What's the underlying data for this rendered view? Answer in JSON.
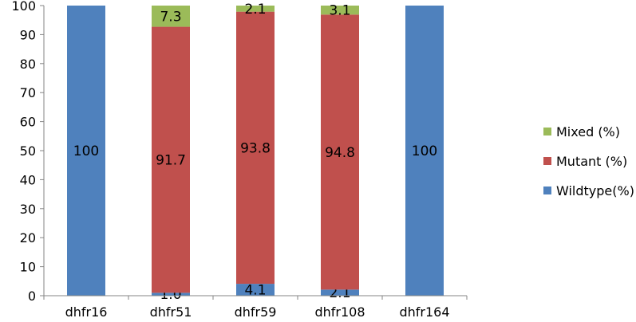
{
  "chart_data": {
    "type": "bar",
    "stacked": true,
    "categories": [
      "dhfr16",
      "dhfr51",
      "dhfr59",
      "dhfr108",
      "dhfr164"
    ],
    "series": [
      {
        "name": "Wildtype(%)",
        "color": "#4F81BD",
        "values": [
          100,
          1.0,
          4.1,
          2.1,
          100
        ],
        "labels": [
          "100",
          "1.0",
          "4.1",
          "2.1",
          "100"
        ]
      },
      {
        "name": "Mutant (%)",
        "color": "#C0504D",
        "values": [
          0,
          91.7,
          93.8,
          94.8,
          0
        ],
        "labels": [
          "",
          "91.7",
          "93.8",
          "94.8",
          ""
        ]
      },
      {
        "name": "Mixed (%)",
        "color": "#9BBB59",
        "values": [
          0,
          7.3,
          2.1,
          3.1,
          0
        ],
        "labels": [
          "",
          "7.3",
          "2.1",
          "3.1",
          ""
        ]
      }
    ],
    "title": "",
    "xlabel": "",
    "ylabel": "",
    "ylim": [
      0,
      100
    ],
    "yticks": [
      0,
      10,
      20,
      30,
      40,
      50,
      60,
      70,
      80,
      90,
      100
    ],
    "grid": false,
    "legend_position": "right",
    "legend_order": [
      "Mixed (%)",
      "Mutant (%)",
      "Wildtype(%)"
    ]
  }
}
